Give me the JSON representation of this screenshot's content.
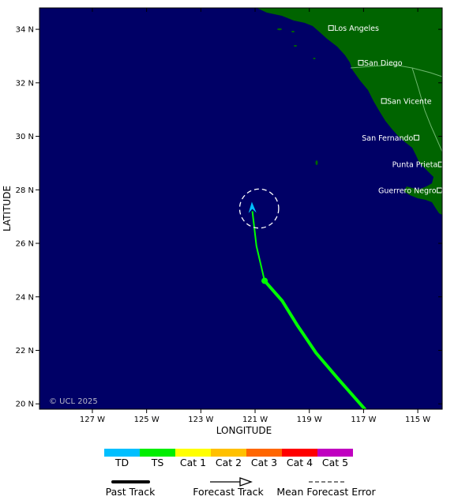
{
  "map": {
    "xlabel": "LONGITUDE",
    "ylabel": "LATITUDE",
    "lon_range": [
      -128.95,
      -114.1
    ],
    "lat_range": [
      19.8,
      34.8
    ],
    "ocean_color": "#000066",
    "land_color": "#006400",
    "border_color": "#6fb86f",
    "lon_ticks": [
      {
        "value": -127,
        "label": "127 W"
      },
      {
        "value": -125,
        "label": "125 W"
      },
      {
        "value": -123,
        "label": "123 W"
      },
      {
        "value": -121,
        "label": "121 W"
      },
      {
        "value": -119,
        "label": "119 W"
      },
      {
        "value": -117,
        "label": "117 W"
      },
      {
        "value": -115,
        "label": "115 W"
      }
    ],
    "lat_ticks": [
      {
        "value": 20,
        "label": "20 N"
      },
      {
        "value": 22,
        "label": "22 N"
      },
      {
        "value": 24,
        "label": "24 N"
      },
      {
        "value": 26,
        "label": "26 N"
      },
      {
        "value": 28,
        "label": "28 N"
      },
      {
        "value": 30,
        "label": "30 N"
      },
      {
        "value": 32,
        "label": "32 N"
      },
      {
        "value": 34,
        "label": "34 N"
      }
    ],
    "copyright": "© UCL 2025",
    "cities": [
      {
        "name": "Los Angeles",
        "lon": -118.2,
        "lat": 34.05,
        "label_side": "right"
      },
      {
        "name": "San Diego",
        "lon": -117.1,
        "lat": 32.75,
        "label_side": "right"
      },
      {
        "name": "San Vicente",
        "lon": -116.25,
        "lat": 31.32,
        "label_side": "right"
      },
      {
        "name": "San Fernando",
        "lon": -115.05,
        "lat": 29.95,
        "label_side": "left"
      },
      {
        "name": "Punta Prieta",
        "lon": -114.15,
        "lat": 28.95,
        "label_side": "left"
      },
      {
        "name": "Guerrero Negro",
        "lon": -114.2,
        "lat": 27.98,
        "label_side": "left"
      }
    ],
    "past_track": {
      "category": "TS",
      "color": "#00ff00",
      "points": [
        {
          "lon": -116.95,
          "lat": 19.8
        },
        {
          "lon": -117.95,
          "lat": 20.95
        },
        {
          "lon": -118.75,
          "lat": 21.9
        },
        {
          "lon": -119.45,
          "lat": 22.95
        },
        {
          "lon": -120.0,
          "lat": 23.85
        },
        {
          "lon": -120.65,
          "lat": 24.6
        }
      ]
    },
    "forecast_track": {
      "category": "TS",
      "color": "#00ff00",
      "points": [
        {
          "lon": -120.65,
          "lat": 24.6
        },
        {
          "lon": -120.95,
          "lat": 25.9
        },
        {
          "lon": -121.1,
          "lat": 27.2
        }
      ],
      "arrow_color": "#00bfff",
      "arrow_tip": {
        "lon": -121.12,
        "lat": 27.55
      }
    },
    "current_position": {
      "lon": -120.65,
      "lat": 24.6
    },
    "error_circle": {
      "lon": -120.85,
      "lat": 27.3,
      "radius_deg": 0.72
    }
  },
  "legend": {
    "categories": [
      {
        "label": "TD",
        "color": "#00bfff"
      },
      {
        "label": "TS",
        "color": "#00ee00"
      },
      {
        "label": "Cat 1",
        "color": "#ffff00"
      },
      {
        "label": "Cat 2",
        "color": "#ffc000"
      },
      {
        "label": "Cat 3",
        "color": "#ff6600"
      },
      {
        "label": "Cat 4",
        "color": "#ff0000"
      },
      {
        "label": "Cat 5",
        "color": "#c000c0"
      }
    ],
    "past_track_label": "Past Track",
    "forecast_track_label": "Forecast Track",
    "mean_error_label": "Mean Forecast Error"
  }
}
